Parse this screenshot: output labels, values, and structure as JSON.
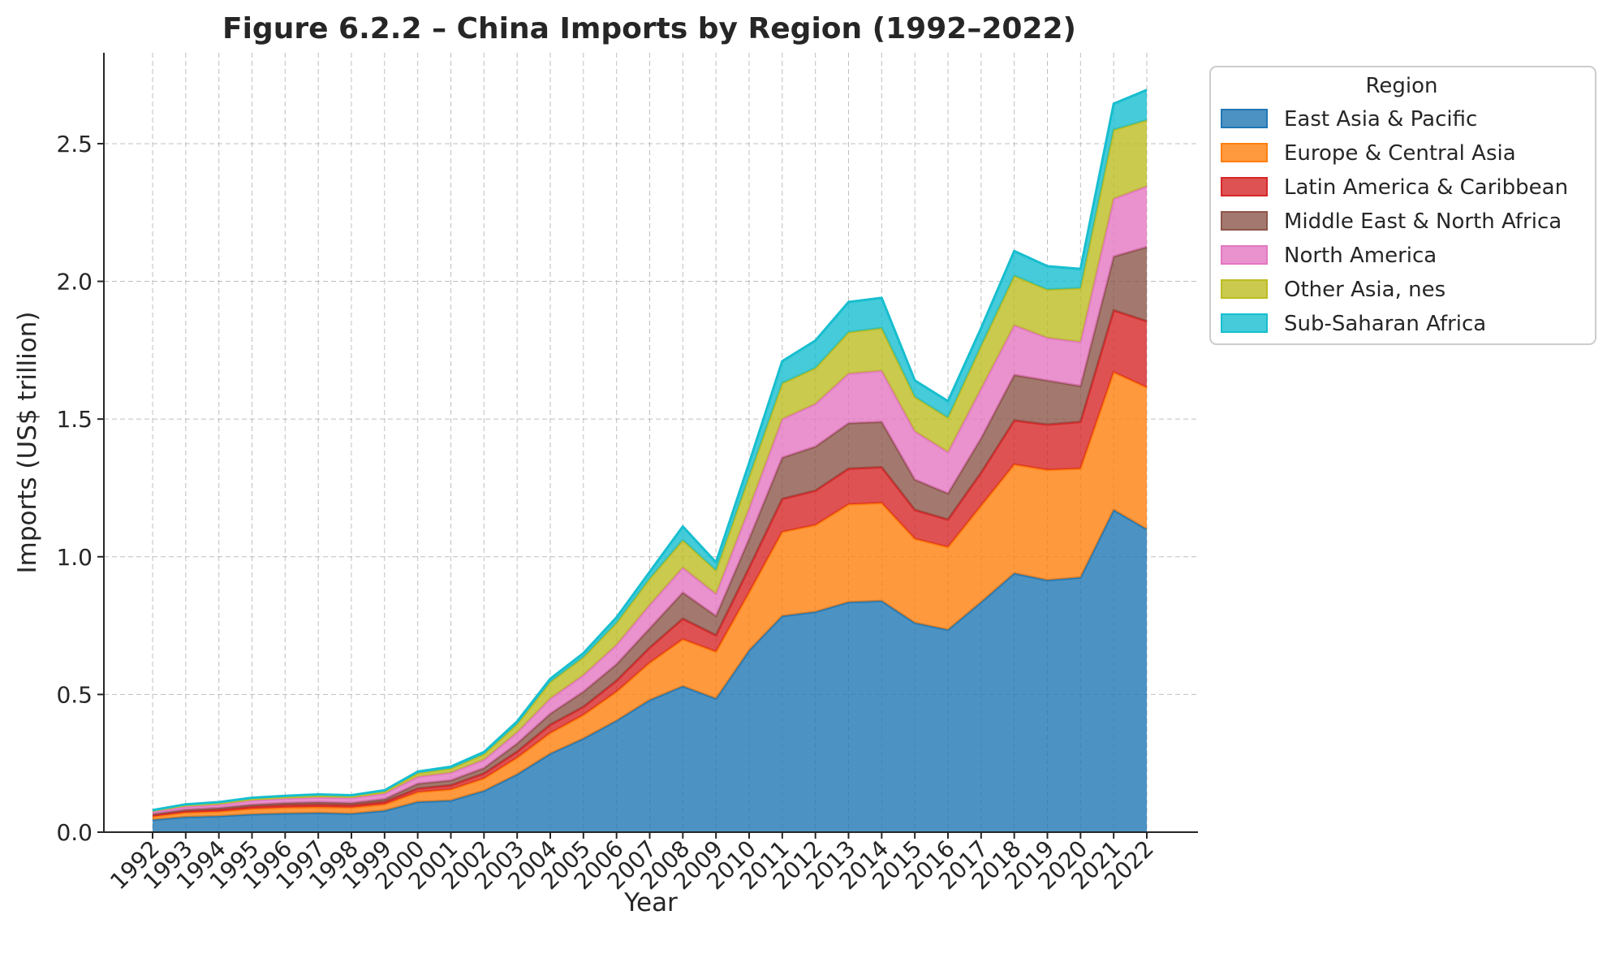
{
  "chart_data": {
    "type": "area",
    "stacked": true,
    "title": "Figure 6.2.2 – China Imports by Region (1992–2022)",
    "xlabel": "Year",
    "ylabel": "Imports (US$ trillion)",
    "ylim": [
      0,
      2.83
    ],
    "yticks": [
      "0.0",
      "0.5",
      "1.0",
      "1.5",
      "2.0",
      "2.5"
    ],
    "grid": true,
    "legend_title": "Region",
    "legend_position": "outside top-right",
    "categories": [
      "1992",
      "1993",
      "1994",
      "1995",
      "1996",
      "1997",
      "1998",
      "1999",
      "2000",
      "2001",
      "2002",
      "2003",
      "2004",
      "2005",
      "2006",
      "2007",
      "2008",
      "2009",
      "2010",
      "2011",
      "2012",
      "2013",
      "2014",
      "2015",
      "2016",
      "2017",
      "2018",
      "2019",
      "2020",
      "2021",
      "2022"
    ],
    "series": [
      {
        "name": "East Asia & Pacific",
        "color": "#1f77b4",
        "values": [
          0.045,
          0.055,
          0.058,
          0.065,
          0.068,
          0.07,
          0.067,
          0.078,
          0.11,
          0.115,
          0.15,
          0.21,
          0.285,
          0.34,
          0.405,
          0.48,
          0.53,
          0.485,
          0.66,
          0.785,
          0.8,
          0.835,
          0.84,
          0.76,
          0.735,
          0.835,
          0.94,
          0.915,
          0.925,
          1.17,
          1.1
        ]
      },
      {
        "name": "Europe & Central Asia",
        "color": "#ff7f0e",
        "values": [
          0.012,
          0.016,
          0.017,
          0.02,
          0.021,
          0.021,
          0.022,
          0.023,
          0.035,
          0.04,
          0.045,
          0.06,
          0.075,
          0.085,
          0.105,
          0.135,
          0.17,
          0.17,
          0.21,
          0.305,
          0.315,
          0.355,
          0.355,
          0.305,
          0.3,
          0.35,
          0.395,
          0.4,
          0.395,
          0.5,
          0.515
        ]
      },
      {
        "name": "Latin America & Caribbean",
        "color": "#d62728",
        "values": [
          0.005,
          0.006,
          0.007,
          0.008,
          0.009,
          0.009,
          0.009,
          0.009,
          0.013,
          0.015,
          0.018,
          0.022,
          0.03,
          0.03,
          0.04,
          0.055,
          0.075,
          0.06,
          0.09,
          0.12,
          0.125,
          0.13,
          0.13,
          0.105,
          0.1,
          0.12,
          0.16,
          0.165,
          0.17,
          0.225,
          0.24
        ]
      },
      {
        "name": "Middle East & North Africa",
        "color": "#8c564b",
        "values": [
          0.004,
          0.005,
          0.006,
          0.007,
          0.008,
          0.009,
          0.008,
          0.01,
          0.018,
          0.018,
          0.02,
          0.03,
          0.04,
          0.055,
          0.06,
          0.07,
          0.095,
          0.07,
          0.105,
          0.15,
          0.16,
          0.165,
          0.165,
          0.11,
          0.095,
          0.125,
          0.165,
          0.16,
          0.13,
          0.195,
          0.27
        ]
      },
      {
        "name": "North America",
        "color": "#e377c2",
        "values": [
          0.008,
          0.011,
          0.012,
          0.015,
          0.016,
          0.017,
          0.018,
          0.02,
          0.025,
          0.028,
          0.03,
          0.04,
          0.055,
          0.06,
          0.07,
          0.085,
          0.09,
          0.08,
          0.11,
          0.14,
          0.155,
          0.18,
          0.185,
          0.175,
          0.15,
          0.18,
          0.18,
          0.155,
          0.16,
          0.21,
          0.22
        ]
      },
      {
        "name": "Other Asia, nes",
        "color": "#bcbd22",
        "values": [
          0.004,
          0.005,
          0.006,
          0.006,
          0.006,
          0.007,
          0.006,
          0.008,
          0.013,
          0.015,
          0.02,
          0.03,
          0.06,
          0.065,
          0.08,
          0.095,
          0.1,
          0.085,
          0.115,
          0.13,
          0.13,
          0.15,
          0.155,
          0.125,
          0.125,
          0.155,
          0.18,
          0.175,
          0.195,
          0.25,
          0.24
        ]
      },
      {
        "name": "Sub-Saharan Africa",
        "color": "#17becf",
        "values": [
          0.002,
          0.003,
          0.003,
          0.004,
          0.004,
          0.004,
          0.004,
          0.004,
          0.006,
          0.007,
          0.008,
          0.01,
          0.012,
          0.015,
          0.02,
          0.025,
          0.05,
          0.03,
          0.05,
          0.08,
          0.1,
          0.11,
          0.11,
          0.06,
          0.06,
          0.065,
          0.09,
          0.085,
          0.07,
          0.095,
          0.11
        ]
      }
    ]
  }
}
